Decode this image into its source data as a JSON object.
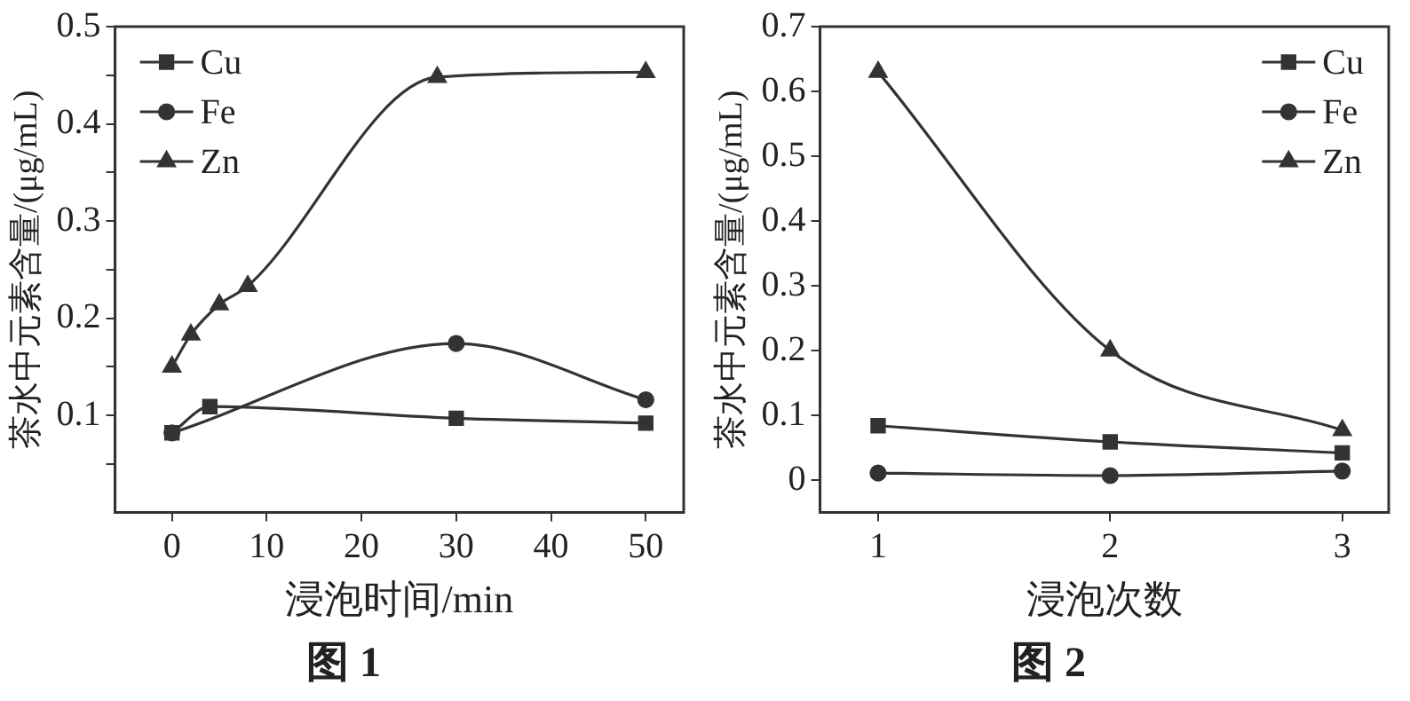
{
  "chart_data": [
    {
      "type": "line",
      "title": "图 1",
      "xlabel": "浸泡时间/min",
      "ylabel": "茶水中元素含量/(μg/mL)",
      "xlim": [
        -6,
        54
      ],
      "xticks": [
        0,
        10,
        20,
        30,
        40,
        50
      ],
      "ylim": [
        0,
        0.5
      ],
      "yticks": [
        {
          "value": 0.05,
          "label": null
        },
        0.1,
        {
          "value": 0.15,
          "label": null
        },
        0.2,
        {
          "value": 0.25,
          "label": null
        },
        0.3,
        {
          "value": 0.35,
          "label": null
        },
        0.4,
        {
          "value": 0.45,
          "label": null
        },
        0.5
      ],
      "grid": false,
      "legend": "top left",
      "series": [
        {
          "name": "Cu",
          "color": "#333333",
          "marker": "square",
          "x": [
            0,
            4,
            30,
            50
          ],
          "values": [
            0.082,
            0.109,
            0.097,
            0.092
          ]
        },
        {
          "name": "Fe",
          "color": "#333333",
          "marker": "circle",
          "x": [
            0,
            30,
            50
          ],
          "values": [
            0.082,
            0.174,
            0.116
          ]
        },
        {
          "name": "Zn",
          "color": "#333333",
          "marker": "triangle",
          "x": [
            0,
            2,
            5,
            8,
            28,
            50
          ],
          "values": [
            0.15,
            0.183,
            0.214,
            0.233,
            0.448,
            0.453
          ]
        }
      ]
    },
    {
      "type": "line",
      "title": "图 2",
      "xlabel": "浸泡次数",
      "ylabel": "茶水中元素含量/(μg/mL)",
      "xlim": [
        0.75,
        3.2
      ],
      "xticks": [
        1,
        2,
        3
      ],
      "ylim": [
        -0.05,
        0.7
      ],
      "yticks": [
        0,
        0.1,
        0.2,
        0.3,
        0.4,
        0.5,
        0.6,
        0.7
      ],
      "grid": false,
      "legend": "top right",
      "series": [
        {
          "name": "Cu",
          "color": "#333333",
          "marker": "square",
          "x": [
            1,
            2,
            3
          ],
          "values": [
            0.084,
            0.059,
            0.042
          ]
        },
        {
          "name": "Fe",
          "color": "#333333",
          "marker": "circle",
          "x": [
            1,
            2,
            3
          ],
          "values": [
            0.011,
            0.007,
            0.014
          ]
        },
        {
          "name": "Zn",
          "color": "#333333",
          "marker": "triangle",
          "x": [
            1,
            2,
            3
          ],
          "values": [
            0.63,
            0.2,
            0.077
          ]
        }
      ]
    }
  ]
}
